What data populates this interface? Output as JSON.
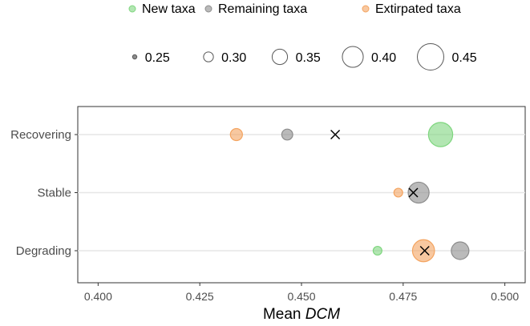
{
  "chart_data": {
    "type": "scatter",
    "xlabel_prefix": "Mean ",
    "xlabel_italic": "DCM",
    "categories": [
      "Recovering",
      "Stable",
      "Degrading"
    ],
    "xlim": [
      0.395,
      0.505
    ],
    "xticks": [
      0.4,
      0.425,
      0.45,
      0.475,
      0.5
    ],
    "xtick_labels": [
      "0.400",
      "0.425",
      "0.450",
      "0.475",
      "0.500"
    ],
    "grid": "horizontal",
    "legend_position": "top",
    "series": [
      {
        "name": "New taxa",
        "color": "#7fd67f",
        "points": [
          {
            "category": "Recovering",
            "x": 0.4842,
            "size": 0.43
          },
          {
            "category": "Degrading",
            "x": 0.4687,
            "size": 0.29
          }
        ]
      },
      {
        "name": "Remaining taxa",
        "color": "#8c8c8c",
        "points": [
          {
            "category": "Recovering",
            "x": 0.4465,
            "size": 0.31
          },
          {
            "category": "Stable",
            "x": 0.4788,
            "size": 0.4
          },
          {
            "category": "Degrading",
            "x": 0.489,
            "size": 0.37
          }
        ]
      },
      {
        "name": "Extirpated taxa",
        "color": "#f4a460",
        "points": [
          {
            "category": "Recovering",
            "x": 0.434,
            "size": 0.32
          },
          {
            "category": "Stable",
            "x": 0.4738,
            "size": 0.29
          },
          {
            "category": "Degrading",
            "x": 0.48,
            "size": 0.41
          }
        ]
      }
    ],
    "means": [
      {
        "category": "Recovering",
        "x": 0.4583
      },
      {
        "category": "Stable",
        "x": 0.4775
      },
      {
        "category": "Degrading",
        "x": 0.4803
      }
    ],
    "size_legend": {
      "values": [
        0.25,
        0.3,
        0.35,
        0.4,
        0.45
      ],
      "labels": [
        "0.25",
        "0.30",
        "0.35",
        "0.40",
        "0.45"
      ]
    }
  }
}
